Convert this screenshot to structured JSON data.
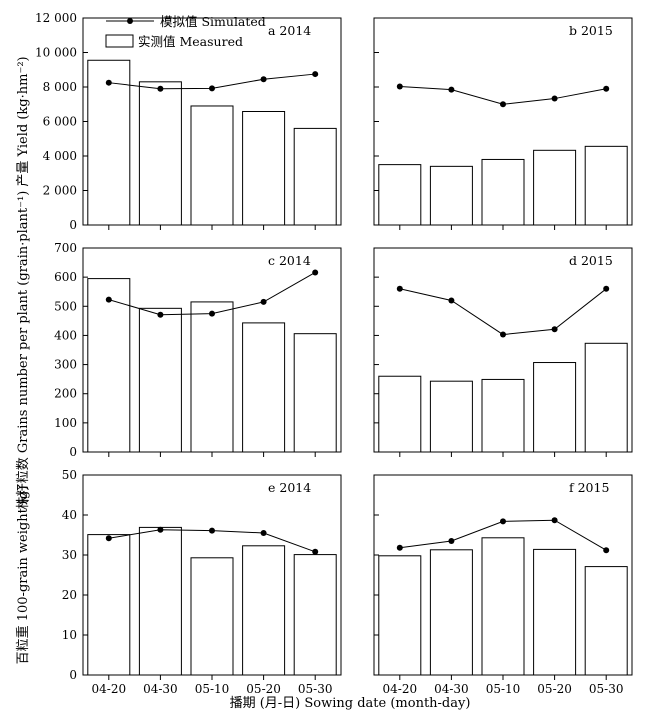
{
  "xlabel": "播期 (月-日) Sowing date (month-day)",
  "legend": {
    "simulated": "模拟值 Simulated",
    "measured": "实测值 Measured"
  },
  "chart_data": [
    {
      "type": "bar",
      "panel": "a 2014",
      "ylabel": "产量 Yield (kg·hm⁻²)",
      "categories": [
        "04-20",
        "04-30",
        "05-10",
        "05-20",
        "05-30"
      ],
      "ylim": [
        0,
        12000
      ],
      "yticks": [
        0,
        2000,
        4000,
        6000,
        8000,
        10000,
        12000
      ],
      "ytick_labels": [
        "0",
        "2 000",
        "4 000",
        "6 000",
        "8 000",
        "10 000",
        "12 000"
      ],
      "series": [
        {
          "name": "实测值 Measured",
          "kind": "bar",
          "values": [
            9550,
            8300,
            6900,
            6580,
            5600
          ]
        },
        {
          "name": "模拟值 Simulated",
          "kind": "line",
          "values": [
            8250,
            7900,
            7920,
            8450,
            8750
          ]
        }
      ]
    },
    {
      "type": "bar",
      "panel": "b 2015",
      "categories": [
        "04-20",
        "04-30",
        "05-10",
        "05-20",
        "05-30"
      ],
      "ylim": [
        0,
        12000
      ],
      "series": [
        {
          "name": "实测值 Measured",
          "kind": "bar",
          "values": [
            3500,
            3400,
            3800,
            4330,
            4560
          ]
        },
        {
          "name": "模拟值 Simulated",
          "kind": "line",
          "values": [
            8030,
            7850,
            7000,
            7330,
            7900
          ]
        }
      ]
    },
    {
      "type": "bar",
      "panel": "c 2014",
      "ylabel": "株籽粒数 Grains number per plant (grain·plant⁻¹)",
      "categories": [
        "04-20",
        "04-30",
        "05-10",
        "05-20",
        "05-30"
      ],
      "ylim": [
        0,
        700
      ],
      "yticks": [
        0,
        100,
        200,
        300,
        400,
        500,
        600,
        700
      ],
      "ytick_labels": [
        "0",
        "100",
        "200",
        "300",
        "400",
        "500",
        "600",
        "700"
      ],
      "series": [
        {
          "name": "实测值 Measured",
          "kind": "bar",
          "values": [
            595,
            493,
            515,
            443,
            406
          ]
        },
        {
          "name": "模拟值 Simulated",
          "kind": "line",
          "values": [
            523,
            471,
            475,
            515,
            616
          ]
        }
      ]
    },
    {
      "type": "bar",
      "panel": "d 2015",
      "categories": [
        "04-20",
        "04-30",
        "05-10",
        "05-20",
        "05-30"
      ],
      "ylim": [
        0,
        700
      ],
      "series": [
        {
          "name": "实测值 Measured",
          "kind": "bar",
          "values": [
            260,
            243,
            249,
            307,
            373
          ]
        },
        {
          "name": "模拟值 Simulated",
          "kind": "line",
          "values": [
            560,
            520,
            403,
            421,
            560
          ]
        }
      ]
    },
    {
      "type": "bar",
      "panel": "e 2014",
      "ylabel": "百粒重 100-grain weight (g)",
      "categories": [
        "04-20",
        "04-30",
        "05-10",
        "05-20",
        "05-30"
      ],
      "ylim": [
        0,
        50
      ],
      "yticks": [
        0,
        10,
        20,
        30,
        40,
        50
      ],
      "ytick_labels": [
        "0",
        "10",
        "20",
        "30",
        "40",
        "50"
      ],
      "series": [
        {
          "name": "实测值 Measured",
          "kind": "bar",
          "values": [
            35.1,
            36.9,
            29.3,
            32.3,
            30.1
          ]
        },
        {
          "name": "模拟值 Simulated",
          "kind": "line",
          "values": [
            34.2,
            36.3,
            36.1,
            35.5,
            30.8
          ]
        }
      ]
    },
    {
      "type": "bar",
      "panel": "f 2015",
      "categories": [
        "04-20",
        "04-30",
        "05-10",
        "05-20",
        "05-30"
      ],
      "ylim": [
        0,
        50
      ],
      "series": [
        {
          "name": "实测值 Measured",
          "kind": "bar",
          "values": [
            29.8,
            31.3,
            34.3,
            31.4,
            27.1
          ]
        },
        {
          "name": "模拟值 Simulated",
          "kind": "line",
          "values": [
            31.8,
            33.5,
            38.4,
            38.7,
            31.2
          ]
        }
      ]
    }
  ]
}
